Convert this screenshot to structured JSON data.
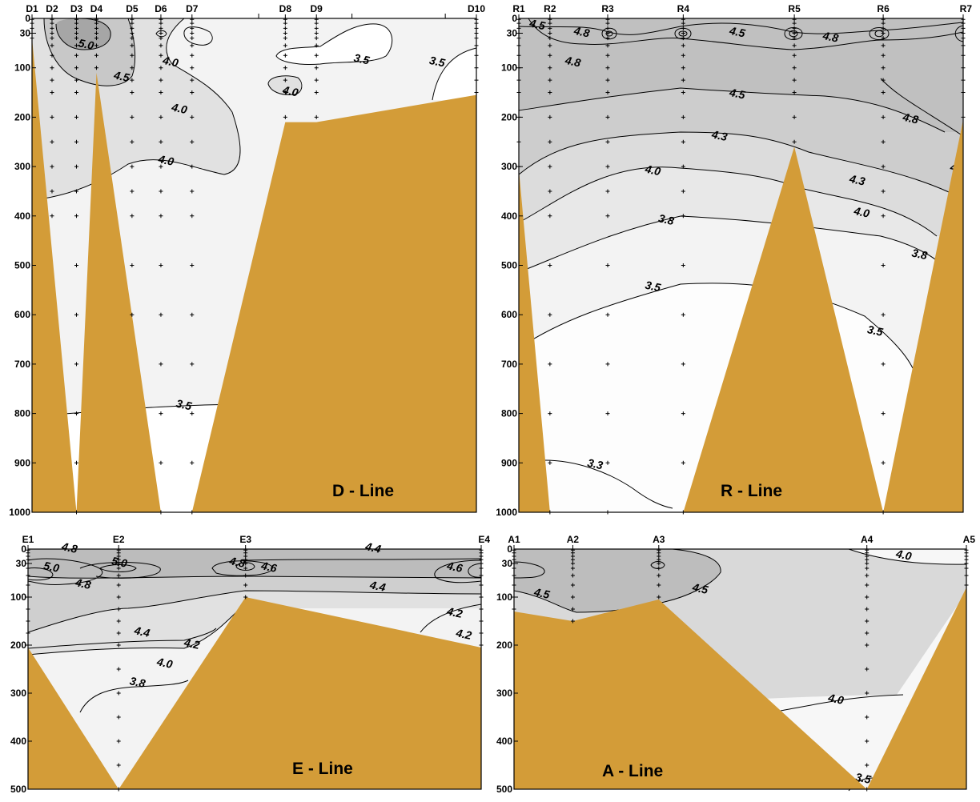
{
  "colors": {
    "bathymetry": "#d39c38",
    "background": "#ffffff",
    "shade_light": "#f3f3f3",
    "shade_mid": "#e1e1e1",
    "shade_dark": "#c8c8c8",
    "shade_darkest": "#a6a6a6",
    "contour_line": "#000000"
  },
  "chart_data": [
    {
      "type": "contour",
      "id": "d",
      "title": "D - Line",
      "ylim": [
        0,
        1000
      ],
      "y_ticks": [
        0,
        30,
        100,
        200,
        300,
        400,
        500,
        600,
        700,
        800,
        900,
        1000
      ],
      "y_tick_labels": [
        "0",
        "30",
        "100",
        "200",
        "300",
        "400",
        "500",
        "600",
        "700",
        "800",
        "900",
        "1000"
      ],
      "stations": [
        {
          "name": "D1",
          "x": 0
        },
        {
          "name": "D2",
          "x": 0.045
        },
        {
          "name": "D3",
          "x": 0.1
        },
        {
          "name": "D4",
          "x": 0.145
        },
        {
          "name": "D5",
          "x": 0.225
        },
        {
          "name": "D6",
          "x": 0.29
        },
        {
          "name": "D7",
          "x": 0.36
        },
        {
          "name": "D8",
          "x": 0.57
        },
        {
          "name": "D9",
          "x": 0.64
        },
        {
          "name": "D10",
          "x": 1.0
        }
      ],
      "extra_ticks_x": [
        0.51,
        0.72,
        0.93
      ],
      "bottom_profile": [
        [
          0,
          40
        ],
        [
          0.1,
          1000
        ],
        [
          0.145,
          110
        ],
        [
          0.29,
          1000
        ],
        [
          0.36,
          1000
        ],
        [
          0.57,
          210
        ],
        [
          0.64,
          210
        ],
        [
          1.0,
          155
        ]
      ],
      "contour_labels": [
        {
          "text": "5.0",
          "x": 0.12,
          "depth": 60
        },
        {
          "text": "4.5",
          "x": 0.2,
          "depth": 125
        },
        {
          "text": "4.0",
          "x": 0.31,
          "depth": 95
        },
        {
          "text": "4.0",
          "x": 0.33,
          "depth": 190
        },
        {
          "text": "4.0",
          "x": 0.3,
          "depth": 295
        },
        {
          "text": "4.0",
          "x": 0.58,
          "depth": 155
        },
        {
          "text": "3.5",
          "x": 0.74,
          "depth": 90
        },
        {
          "text": "3.5",
          "x": 0.91,
          "depth": 95
        },
        {
          "text": "3.5",
          "x": 0.34,
          "depth": 790
        }
      ]
    },
    {
      "type": "contour",
      "id": "r",
      "title": "R - Line",
      "ylim": [
        0,
        1000
      ],
      "y_ticks": [
        0,
        30,
        100,
        200,
        300,
        400,
        500,
        600,
        700,
        800,
        900,
        1000
      ],
      "y_tick_labels": [
        "0",
        "30",
        "100",
        "200",
        "300",
        "400",
        "500",
        "600",
        "700",
        "800",
        "900",
        "1000"
      ],
      "stations": [
        {
          "name": "R1",
          "x": 0
        },
        {
          "name": "R2",
          "x": 0.07
        },
        {
          "name": "R3",
          "x": 0.2
        },
        {
          "name": "R4",
          "x": 0.37
        },
        {
          "name": "R5",
          "x": 0.62
        },
        {
          "name": "R6",
          "x": 0.82
        },
        {
          "name": "R7",
          "x": 1.0
        }
      ],
      "extra_ticks_x": [],
      "bottom_profile": [
        [
          0,
          305
        ],
        [
          0.07,
          1000
        ],
        [
          0.37,
          1000
        ],
        [
          0.62,
          260
        ],
        [
          0.82,
          1000
        ],
        [
          1.0,
          205
        ]
      ],
      "contour_labels": [
        {
          "text": "4.5",
          "x": 0.04,
          "depth": 20
        },
        {
          "text": "4.8",
          "x": 0.14,
          "depth": 35
        },
        {
          "text": "4.8",
          "x": 0.12,
          "depth": 95
        },
        {
          "text": "4.5",
          "x": 0.49,
          "depth": 35
        },
        {
          "text": "4.8",
          "x": 0.7,
          "depth": 45
        },
        {
          "text": "4.5",
          "x": 0.49,
          "depth": 160
        },
        {
          "text": "4.8",
          "x": 0.88,
          "depth": 210
        },
        {
          "text": "4.3",
          "x": 0.45,
          "depth": 245
        },
        {
          "text": "4.0",
          "x": 0.3,
          "depth": 315
        },
        {
          "text": "4.3",
          "x": 0.76,
          "depth": 335
        },
        {
          "text": "4.0",
          "x": 0.77,
          "depth": 400
        },
        {
          "text": "4.",
          "x": 0.98,
          "depth": 310
        },
        {
          "text": "3.8",
          "x": 0.33,
          "depth": 415
        },
        {
          "text": "3.8",
          "x": 0.9,
          "depth": 485
        },
        {
          "text": "3.5",
          "x": 0.3,
          "depth": 550
        },
        {
          "text": "3.5",
          "x": 0.8,
          "depth": 640
        },
        {
          "text": "3.3",
          "x": 0.17,
          "depth": 910
        }
      ]
    },
    {
      "type": "contour",
      "id": "e",
      "title": "E - Line",
      "ylim": [
        0,
        500
      ],
      "y_ticks": [
        0,
        30,
        100,
        200,
        300,
        400,
        500
      ],
      "y_tick_labels": [
        "0",
        "30",
        "100",
        "200",
        "300",
        "400",
        "500"
      ],
      "stations": [
        {
          "name": "E1",
          "x": 0
        },
        {
          "name": "E2",
          "x": 0.2
        },
        {
          "name": "E3",
          "x": 0.48
        },
        {
          "name": "E4",
          "x": 1.0
        }
      ],
      "extra_ticks_x": [],
      "bottom_profile": [
        [
          0,
          205
        ],
        [
          0.2,
          500
        ],
        [
          0.48,
          100
        ],
        [
          1.0,
          205
        ]
      ],
      "contour_labels": [
        {
          "text": "4.8",
          "x": 0.09,
          "depth": 5
        },
        {
          "text": "5.0",
          "x": 0.05,
          "depth": 45
        },
        {
          "text": "4.8",
          "x": 0.12,
          "depth": 80
        },
        {
          "text": "5.0",
          "x": 0.2,
          "depth": 35
        },
        {
          "text": "4.8",
          "x": 0.46,
          "depth": 35
        },
        {
          "text": "4.6",
          "x": 0.53,
          "depth": 45
        },
        {
          "text": "4.4",
          "x": 0.76,
          "depth": 5
        },
        {
          "text": "4.6",
          "x": 0.94,
          "depth": 45
        },
        {
          "text": "4.4",
          "x": 0.77,
          "depth": 85
        },
        {
          "text": "4.2",
          "x": 0.94,
          "depth": 140
        },
        {
          "text": "4.2",
          "x": 0.96,
          "depth": 185
        },
        {
          "text": "4.4",
          "x": 0.25,
          "depth": 180
        },
        {
          "text": "4.2",
          "x": 0.36,
          "depth": 205
        },
        {
          "text": "4.0",
          "x": 0.3,
          "depth": 245
        },
        {
          "text": "3.8",
          "x": 0.24,
          "depth": 285
        }
      ]
    },
    {
      "type": "contour",
      "id": "a",
      "title": "A - Line",
      "ylim": [
        0,
        500
      ],
      "y_ticks": [
        0,
        30,
        100,
        200,
        300,
        400,
        500
      ],
      "y_tick_labels": [
        "0",
        "30",
        "100",
        "200",
        "300",
        "400",
        "500"
      ],
      "stations": [
        {
          "name": "A1",
          "x": 0
        },
        {
          "name": "A2",
          "x": 0.13
        },
        {
          "name": "A3",
          "x": 0.32
        },
        {
          "name": "A4",
          "x": 0.78
        },
        {
          "name": "A5",
          "x": 1.0
        }
      ],
      "extra_ticks_x": [],
      "bottom_profile": [
        [
          0,
          130
        ],
        [
          0.13,
          150
        ],
        [
          0.32,
          105
        ],
        [
          0.78,
          500
        ],
        [
          1.0,
          80
        ]
      ],
      "contour_labels": [
        {
          "text": "4.0",
          "x": 0.86,
          "depth": 20
        },
        {
          "text": "4.5",
          "x": 0.06,
          "depth": 100
        },
        {
          "text": "4.5",
          "x": 0.41,
          "depth": 90
        },
        {
          "text": "4.0",
          "x": 0.71,
          "depth": 320
        },
        {
          "text": "3.5",
          "x": 0.77,
          "depth": 485
        }
      ]
    }
  ]
}
